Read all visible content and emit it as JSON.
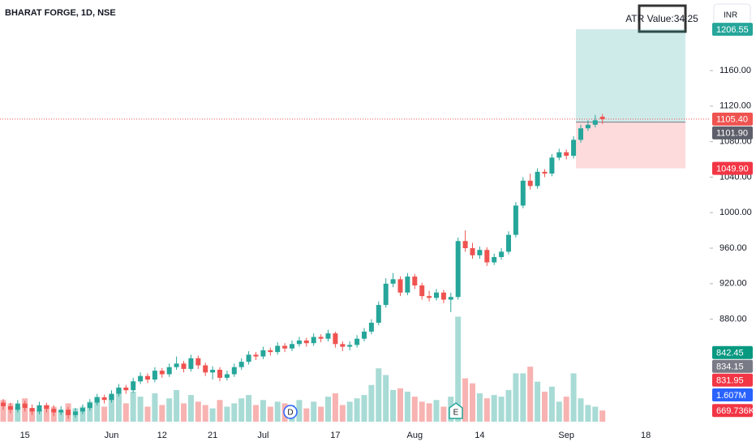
{
  "chart_data": {
    "type": "candlestick",
    "title": "BHARAT FORGE, 1D, NSE",
    "indicator_box": "ATR Value:34.25",
    "currency_button": "INR",
    "events": [
      "D",
      "E"
    ],
    "up_color": "#26a69a",
    "down_color": "#ef5350",
    "volume_up_color": "#a8dbd5",
    "volume_down_color": "#f7b3b1",
    "ylim": [
      760,
      1239.5
    ],
    "yticks": [
      {
        "value": 880,
        "label": "880.00"
      },
      {
        "value": 920,
        "label": "920.00"
      },
      {
        "value": 960,
        "label": "960.00"
      },
      {
        "value": 1000,
        "label": "1000.00"
      },
      {
        "value": 1040,
        "label": "1040.00"
      },
      {
        "value": 1080,
        "label": "1080.00"
      },
      {
        "value": 1120,
        "label": "1120.00"
      },
      {
        "value": 1160,
        "label": "1160.00"
      }
    ],
    "volume_ylim": [
      0,
      25.3
    ],
    "categories": [
      null,
      null,
      null,
      "15",
      null,
      null,
      null,
      null,
      null,
      null,
      null,
      null,
      null,
      null,
      null,
      "Jun",
      null,
      null,
      null,
      null,
      null,
      null,
      "12",
      null,
      null,
      null,
      null,
      null,
      null,
      "21",
      null,
      null,
      null,
      null,
      null,
      null,
      "Jul",
      null,
      null,
      null,
      null,
      null,
      null,
      null,
      null,
      null,
      "17",
      null,
      null,
      null,
      null,
      null,
      null,
      null,
      null,
      null,
      null,
      "Aug",
      null,
      null,
      null,
      null,
      null,
      null,
      null,
      null,
      "14",
      null,
      null,
      null,
      null,
      null,
      null,
      null,
      null,
      null,
      null,
      null,
      "Sep",
      null,
      null,
      null,
      null,
      null,
      null,
      null,
      null,
      null,
      null,
      "18",
      null,
      null,
      null,
      null,
      null
    ],
    "ohlc": [
      [
        786,
        790,
        778,
        782
      ],
      [
        782,
        786,
        774,
        778
      ],
      [
        778,
        789,
        775,
        785
      ],
      [
        785,
        788,
        776,
        780
      ],
      [
        780,
        784,
        772,
        776
      ],
      [
        776,
        787,
        773,
        783
      ],
      [
        783,
        786,
        775,
        779
      ],
      [
        779,
        783,
        771,
        775
      ],
      [
        775,
        782,
        772,
        778
      ],
      [
        778,
        781,
        768,
        772
      ],
      [
        772,
        780,
        769,
        776
      ],
      [
        776,
        784,
        773,
        780
      ],
      [
        780,
        790,
        777,
        786
      ],
      [
        786,
        796,
        783,
        792
      ],
      [
        792,
        795,
        785,
        789
      ],
      [
        789,
        800,
        786,
        796
      ],
      [
        796,
        807,
        793,
        803
      ],
      [
        803,
        806,
        796,
        800
      ],
      [
        800,
        814,
        797,
        810
      ],
      [
        810,
        820,
        807,
        816
      ],
      [
        816,
        819,
        808,
        812
      ],
      [
        812,
        826,
        809,
        822
      ],
      [
        822,
        825,
        814,
        818
      ],
      [
        818,
        830,
        815,
        826
      ],
      [
        826,
        838,
        823,
        830
      ],
      [
        830,
        833,
        820,
        824
      ],
      [
        824,
        840,
        821,
        836
      ],
      [
        836,
        839,
        824,
        828
      ],
      [
        828,
        831,
        816,
        820
      ],
      [
        820,
        827,
        812,
        823
      ],
      [
        823,
        826,
        810,
        814
      ],
      [
        814,
        822,
        811,
        818
      ],
      [
        818,
        830,
        815,
        826
      ],
      [
        826,
        836,
        823,
        832
      ],
      [
        832,
        844,
        829,
        840
      ],
      [
        840,
        843,
        834,
        838
      ],
      [
        838,
        849,
        835,
        845
      ],
      [
        845,
        848,
        839,
        843
      ],
      [
        843,
        854,
        840,
        850
      ],
      [
        850,
        853,
        843,
        847
      ],
      [
        847,
        856,
        844,
        852
      ],
      [
        852,
        860,
        849,
        856
      ],
      [
        856,
        859,
        849,
        853
      ],
      [
        853,
        864,
        850,
        860
      ],
      [
        860,
        863,
        854,
        858
      ],
      [
        858,
        868,
        855,
        864
      ],
      [
        864,
        866,
        848,
        852
      ],
      [
        852,
        855,
        844,
        849
      ],
      [
        849,
        855,
        845,
        851
      ],
      [
        851,
        862,
        848,
        858
      ],
      [
        858,
        870,
        855,
        866
      ],
      [
        866,
        880,
        863,
        876
      ],
      [
        876,
        900,
        873,
        896
      ],
      [
        896,
        926,
        893,
        920
      ],
      [
        920,
        932,
        916,
        925
      ],
      [
        925,
        928,
        906,
        910
      ],
      [
        910,
        932,
        907,
        928
      ],
      [
        928,
        931,
        914,
        918
      ],
      [
        918,
        921,
        902,
        906
      ],
      [
        906,
        912,
        900,
        904
      ],
      [
        904,
        914,
        901,
        910
      ],
      [
        910,
        913,
        898,
        902
      ],
      [
        902,
        910,
        888,
        905
      ],
      [
        905,
        972,
        902,
        968
      ],
      [
        968,
        980,
        956,
        960
      ],
      [
        960,
        966,
        948,
        952
      ],
      [
        952,
        962,
        948,
        958
      ],
      [
        958,
        961,
        940,
        944
      ],
      [
        944,
        954,
        941,
        950
      ],
      [
        950,
        960,
        947,
        956
      ],
      [
        956,
        979,
        953,
        975
      ],
      [
        975,
        1012,
        972,
        1008
      ],
      [
        1008,
        1040,
        1005,
        1036
      ],
      [
        1036,
        1044,
        1026,
        1030
      ],
      [
        1030,
        1050,
        1027,
        1046
      ],
      [
        1046,
        1049,
        1040,
        1044
      ],
      [
        1044,
        1066,
        1041,
        1062
      ],
      [
        1062,
        1072,
        1059,
        1068
      ],
      [
        1068,
        1071,
        1060,
        1064
      ],
      [
        1064,
        1086,
        1061,
        1082
      ],
      [
        1082,
        1099,
        1079,
        1095
      ],
      [
        1095,
        1104,
        1092,
        1099
      ],
      [
        1099,
        1110,
        1096,
        1104
      ],
      [
        1108,
        1111,
        1100,
        1105.4
      ],
      null,
      null,
      null,
      null,
      null,
      null,
      null,
      null,
      null,
      null,
      null
    ],
    "volume": [
      1.3,
      1.1,
      0.9,
      1.4,
      0.8,
      0.7,
      1.0,
      0.9,
      0.6,
      1.1,
      0.8,
      0.9,
      1.2,
      1.5,
      0.9,
      1.6,
      2.0,
      1.1,
      1.8,
      1.5,
      0.9,
      1.7,
      1.0,
      1.4,
      1.9,
      1.1,
      1.6,
      1.2,
      1.0,
      0.8,
      1.3,
      0.9,
      1.1,
      1.4,
      1.6,
      1.0,
      1.3,
      0.9,
      1.2,
      1.1,
      1.0,
      1.3,
      0.8,
      1.2,
      0.9,
      1.5,
      1.7,
      1.0,
      1.2,
      1.4,
      1.6,
      2.2,
      3.2,
      2.8,
      1.9,
      2.0,
      1.8,
      1.5,
      1.2,
      1.1,
      1.3,
      0.9,
      1.5,
      6.3,
      2.6,
      2.3,
      1.7,
      1.4,
      1.6,
      1.5,
      1.9,
      2.9,
      2.9,
      3.3,
      2.4,
      1.8,
      2.1,
      1.2,
      1.5,
      2.9,
      1.4,
      1.0,
      0.9,
      0.67,
      null,
      null,
      null,
      null,
      null,
      null,
      null,
      null,
      null,
      null,
      null
    ],
    "position": {
      "target": 1206.55,
      "entry": 1101.9,
      "stop": 1049.9
    },
    "last_price": 1105.4,
    "price_tags": [
      {
        "value": 1206.55,
        "label": "1206.55",
        "color": "#26a69a"
      },
      {
        "value": 1105.4,
        "label": "1105.40",
        "color": "#ef5350"
      },
      {
        "value": 1101.9,
        "label": "1101.90",
        "color": "#5d606b"
      },
      {
        "value": 1049.9,
        "label": "1049.90",
        "color": "#f23645"
      },
      {
        "value": 842.45,
        "label": "842.45",
        "color": "#089981"
      },
      {
        "value": 834.15,
        "label": "834.15",
        "color": "#787b86"
      },
      {
        "value": 831.95,
        "label": "831.95",
        "color": "#f23645"
      }
    ],
    "volume_tags": [
      {
        "value": 1.607,
        "label": "1.607M",
        "color": "#2962ff"
      },
      {
        "value": 0.669736,
        "label": "669.736K",
        "color": "#f23645"
      }
    ]
  }
}
